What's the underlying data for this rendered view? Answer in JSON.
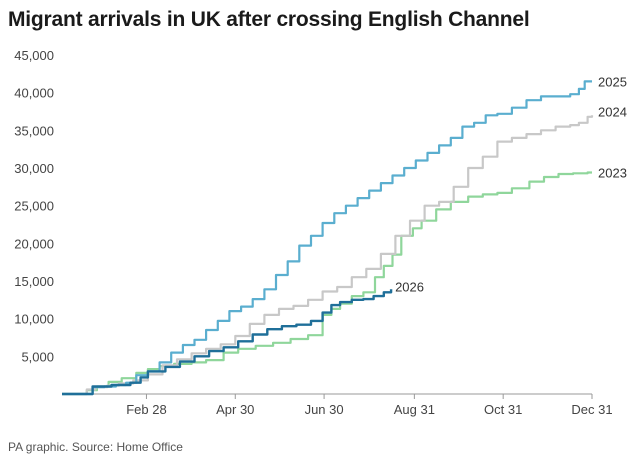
{
  "header": {
    "title": "Migrant arrivals in UK after crossing English Channel"
  },
  "footer": {
    "source": "PA graphic. Source: Home Office"
  },
  "chart_data": {
    "type": "line",
    "title": "Migrant arrivals in UK after crossing English Channel",
    "xlabel": "",
    "ylabel": "",
    "x_unit": "day of year",
    "xlim": [
      1,
      365
    ],
    "ylim": [
      0,
      45000
    ],
    "x_ticks": [
      {
        "label": "Feb 28",
        "day": 59
      },
      {
        "label": "Apr 30",
        "day": 120
      },
      {
        "label": "Jun 30",
        "day": 181
      },
      {
        "label": "Aug 31",
        "day": 243
      },
      {
        "label": "Oct 31",
        "day": 304
      },
      {
        "label": "Dec 31",
        "day": 365
      }
    ],
    "y_ticks": [
      {
        "label": "5,000",
        "value": 5000
      },
      {
        "label": "10,000",
        "value": 10000
      },
      {
        "label": "15,000",
        "value": 15000
      },
      {
        "label": "20,000",
        "value": 20000
      },
      {
        "label": "25,000",
        "value": 25000
      },
      {
        "label": "30,000",
        "value": 30000
      },
      {
        "label": "35,000",
        "value": 35000
      },
      {
        "label": "40,000",
        "value": 40000
      },
      {
        "label": "45,000",
        "value": 45000
      }
    ],
    "grid": false,
    "legend": "end-of-line labels",
    "series": [
      {
        "name": "2023",
        "label": "2023",
        "color": "#8fd69b",
        "x": [
          1,
          12,
          18,
          25,
          33,
          42,
          52,
          60,
          68,
          78,
          90,
          100,
          112,
          122,
          134,
          146,
          158,
          170,
          180,
          186,
          192,
          200,
          208,
          216,
          222,
          228,
          234,
          242,
          248,
          258,
          268,
          280,
          290,
          300,
          310,
          322,
          332,
          342,
          352,
          362,
          365
        ],
        "y": [
          0,
          0,
          500,
          1000,
          1600,
          2100,
          2800,
          3300,
          3700,
          4000,
          4200,
          4500,
          5500,
          6000,
          6400,
          6800,
          7300,
          7800,
          10500,
          11300,
          12000,
          13000,
          13500,
          15500,
          17000,
          18500,
          21000,
          22000,
          23000,
          24500,
          25500,
          26200,
          26500,
          26700,
          27300,
          28200,
          28800,
          29200,
          29300,
          29400,
          29400
        ]
      },
      {
        "name": "2024",
        "label": "2024",
        "color": "#c8c8c8",
        "x": [
          1,
          12,
          18,
          24,
          32,
          40,
          50,
          60,
          70,
          80,
          90,
          100,
          110,
          120,
          130,
          140,
          150,
          160,
          170,
          180,
          190,
          200,
          210,
          220,
          230,
          240,
          250,
          260,
          270,
          280,
          290,
          300,
          310,
          320,
          330,
          340,
          350,
          356,
          362,
          365
        ],
        "y": [
          0,
          0,
          600,
          900,
          1100,
          1400,
          1800,
          2600,
          3800,
          4600,
          5400,
          6000,
          6600,
          7700,
          9300,
          10500,
          11300,
          11700,
          12500,
          13600,
          14200,
          15500,
          16600,
          18600,
          21000,
          23000,
          25000,
          25500,
          27500,
          30000,
          31500,
          33500,
          34000,
          34500,
          35000,
          35500,
          35700,
          36000,
          36800,
          37000
        ]
      },
      {
        "name": "2025",
        "label": "2025",
        "color": "#5aaecf",
        "x": [
          1,
          12,
          22,
          30,
          38,
          45,
          52,
          60,
          68,
          76,
          84,
          92,
          100,
          108,
          116,
          124,
          132,
          140,
          148,
          156,
          164,
          172,
          180,
          188,
          196,
          204,
          212,
          220,
          228,
          236,
          244,
          252,
          260,
          268,
          276,
          284,
          292,
          300,
          310,
          320,
          330,
          340,
          350,
          356,
          360,
          365
        ],
        "y": [
          0,
          0,
          900,
          1000,
          1200,
          1500,
          2500,
          3000,
          4200,
          5500,
          6500,
          7200,
          8500,
          9700,
          11000,
          11600,
          12600,
          13900,
          15800,
          17600,
          19700,
          21000,
          22700,
          24000,
          25000,
          26000,
          27000,
          28000,
          29000,
          30000,
          31000,
          32000,
          33000,
          34000,
          35500,
          36000,
          37000,
          37200,
          38000,
          39000,
          39500,
          39500,
          39800,
          40500,
          41500,
          41500
        ]
      },
      {
        "name": "2026",
        "label": "2026",
        "color": "#1f6f99",
        "x": [
          1,
          12,
          22,
          35,
          48,
          55,
          60,
          72,
          82,
          92,
          102,
          112,
          122,
          132,
          142,
          152,
          162,
          172,
          180,
          186,
          192,
          200,
          208,
          215,
          222,
          227
        ],
        "y": [
          0,
          0,
          1000,
          1200,
          1500,
          2200,
          3000,
          3600,
          4300,
          5000,
          5700,
          6200,
          7000,
          7900,
          8600,
          9000,
          9200,
          9700,
          10800,
          11800,
          12200,
          12500,
          12600,
          13000,
          13500,
          13900
        ]
      }
    ]
  }
}
